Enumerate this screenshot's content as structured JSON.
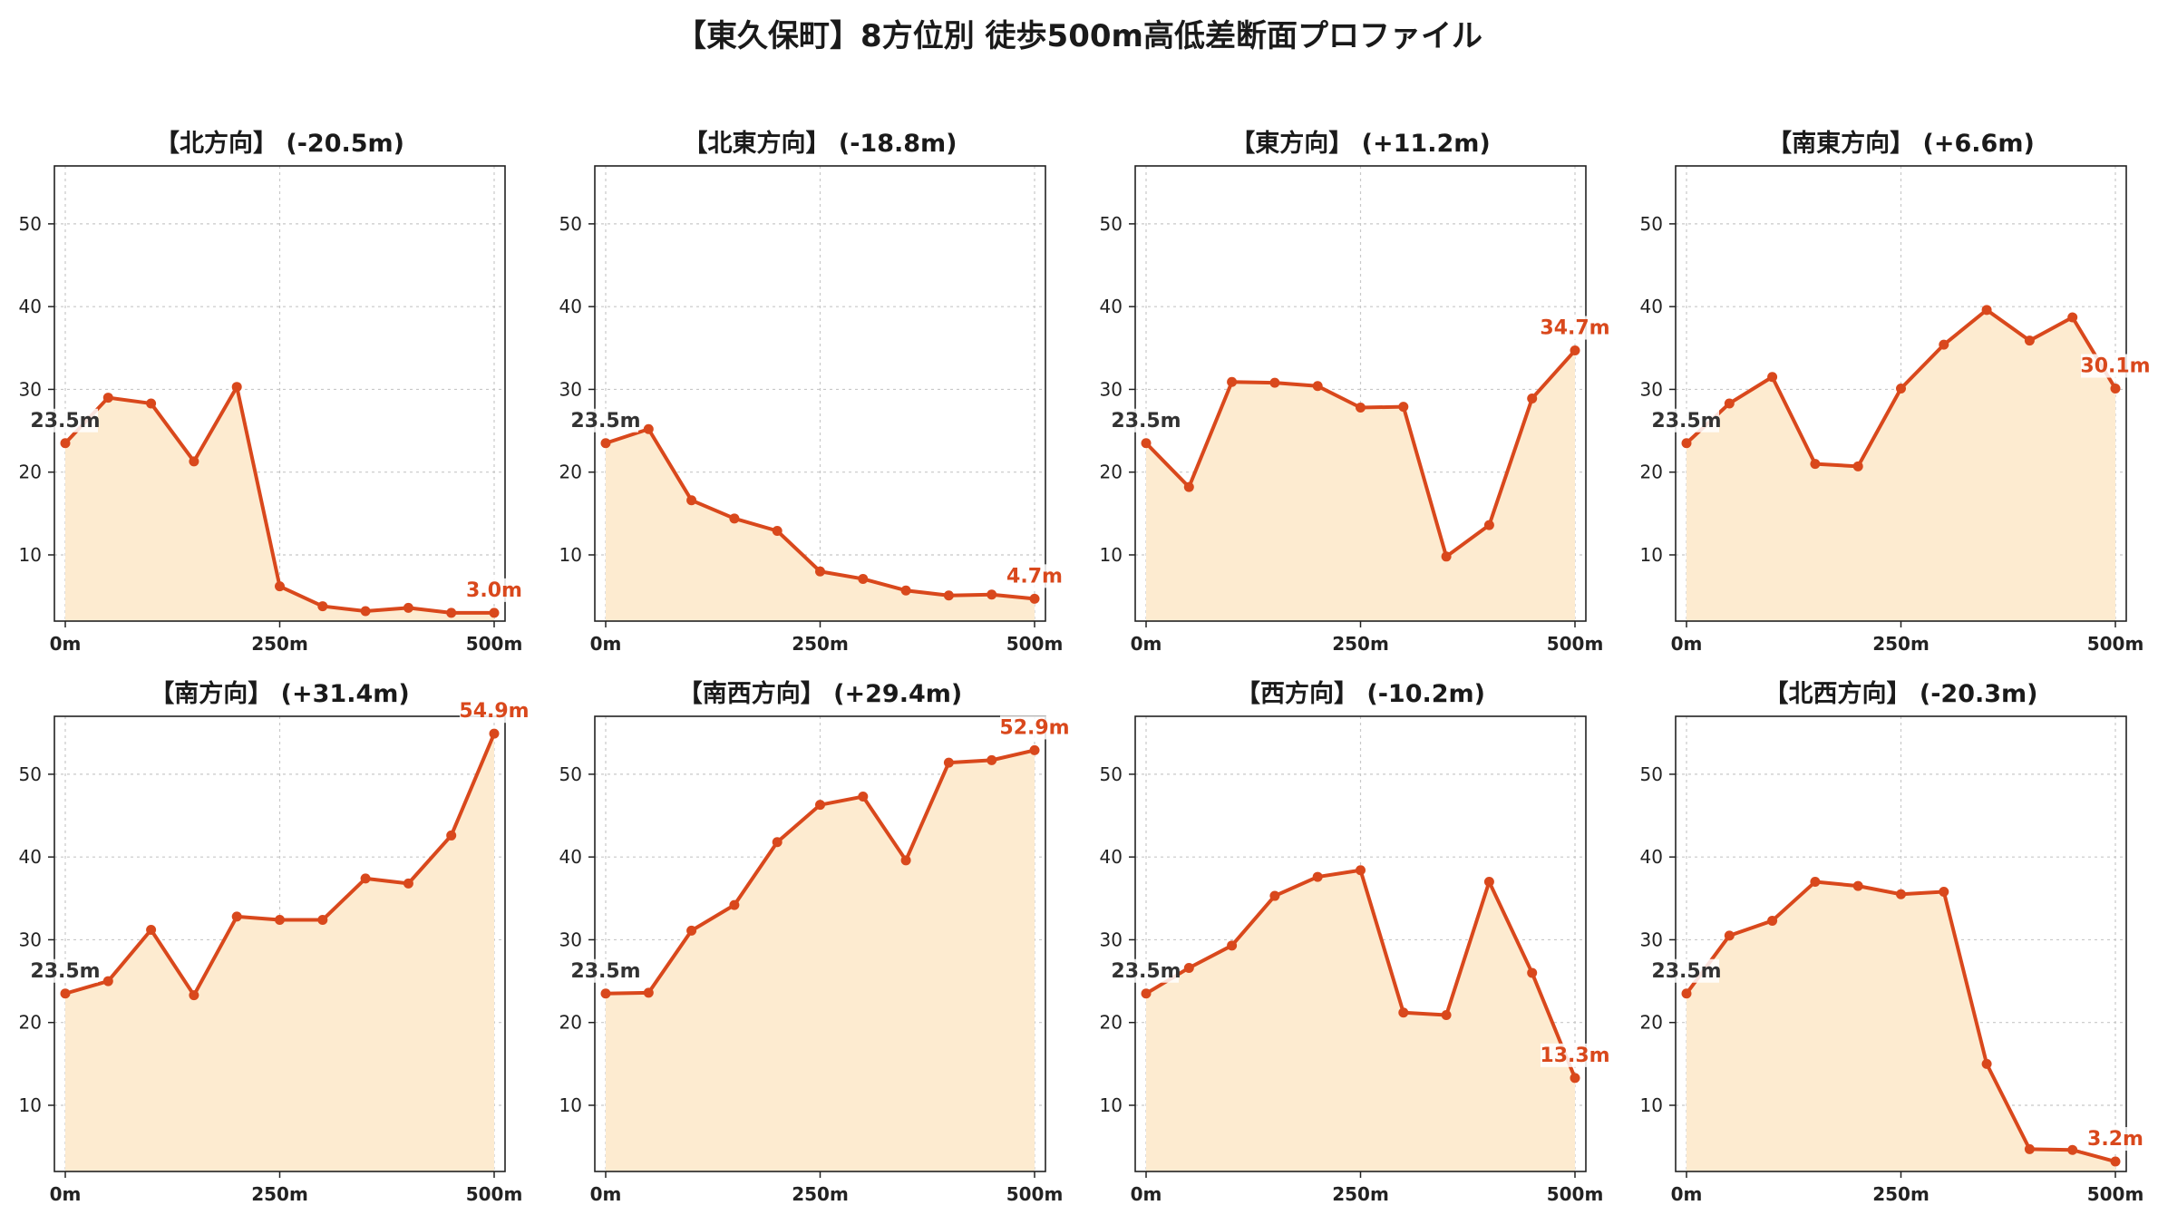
{
  "title": "【東久保町】8方位別 徒歩500m高低差断面プロファイル",
  "colors": {
    "line": "#d9481c",
    "fill": "#fdebd0",
    "grid": "#c8c8c8",
    "first_label": "#333333"
  },
  "chart_data": [
    {
      "type": "area",
      "title": "【北方向】 (-20.5m)",
      "xticklabels": [
        "0m",
        "250m",
        "500m"
      ],
      "yticks": [
        10,
        20,
        30,
        40,
        50
      ],
      "xlim": [
        0,
        500
      ],
      "ylim": [
        2,
        57
      ],
      "grid": true,
      "x": [
        0,
        50,
        100,
        150,
        200,
        250,
        300,
        350,
        400,
        450,
        500
      ],
      "values": [
        23.5,
        29.0,
        28.3,
        21.3,
        30.3,
        6.2,
        3.8,
        3.2,
        3.6,
        3.0,
        3.0
      ],
      "start_label": "23.5m",
      "end_label": "3.0m"
    },
    {
      "type": "area",
      "title": "【北東方向】 (-18.8m)",
      "xticklabels": [
        "0m",
        "250m",
        "500m"
      ],
      "yticks": [
        10,
        20,
        30,
        40,
        50
      ],
      "xlim": [
        0,
        500
      ],
      "ylim": [
        2,
        57
      ],
      "grid": true,
      "x": [
        0,
        50,
        100,
        150,
        200,
        250,
        300,
        350,
        400,
        450,
        500
      ],
      "values": [
        23.5,
        25.2,
        16.6,
        14.4,
        12.9,
        8.0,
        7.1,
        5.7,
        5.1,
        5.2,
        4.7
      ],
      "start_label": "23.5m",
      "end_label": "4.7m"
    },
    {
      "type": "area",
      "title": "【東方向】 (+11.2m)",
      "xticklabels": [
        "0m",
        "250m",
        "500m"
      ],
      "yticks": [
        10,
        20,
        30,
        40,
        50
      ],
      "xlim": [
        0,
        500
      ],
      "ylim": [
        2,
        57
      ],
      "grid": true,
      "x": [
        0,
        50,
        100,
        150,
        200,
        250,
        300,
        350,
        400,
        450,
        500
      ],
      "values": [
        23.5,
        18.2,
        30.9,
        30.8,
        30.4,
        27.8,
        27.9,
        9.8,
        13.6,
        28.9,
        34.7
      ],
      "start_label": "23.5m",
      "end_label": "34.7m"
    },
    {
      "type": "area",
      "title": "【南東方向】 (+6.6m)",
      "xticklabels": [
        "0m",
        "250m",
        "500m"
      ],
      "yticks": [
        10,
        20,
        30,
        40,
        50
      ],
      "xlim": [
        0,
        500
      ],
      "ylim": [
        2,
        57
      ],
      "grid": true,
      "x": [
        0,
        50,
        100,
        150,
        200,
        250,
        300,
        350,
        400,
        450,
        500
      ],
      "values": [
        23.5,
        28.3,
        31.5,
        21.0,
        20.7,
        30.1,
        35.4,
        39.6,
        35.9,
        38.7,
        30.1
      ],
      "start_label": "23.5m",
      "end_label": "30.1m"
    },
    {
      "type": "area",
      "title": "【南方向】 (+31.4m)",
      "xticklabels": [
        "0m",
        "250m",
        "500m"
      ],
      "yticks": [
        10,
        20,
        30,
        40,
        50
      ],
      "xlim": [
        0,
        500
      ],
      "ylim": [
        2,
        57
      ],
      "grid": true,
      "x": [
        0,
        50,
        100,
        150,
        200,
        250,
        300,
        350,
        400,
        450,
        500
      ],
      "values": [
        23.5,
        25.0,
        31.2,
        23.3,
        32.8,
        32.4,
        32.4,
        37.4,
        36.8,
        42.6,
        54.9
      ],
      "start_label": "23.5m",
      "end_label": "54.9m"
    },
    {
      "type": "area",
      "title": "【南西方向】 (+29.4m)",
      "xticklabels": [
        "0m",
        "250m",
        "500m"
      ],
      "yticks": [
        10,
        20,
        30,
        40,
        50
      ],
      "xlim": [
        0,
        500
      ],
      "ylim": [
        2,
        57
      ],
      "grid": true,
      "x": [
        0,
        50,
        100,
        150,
        200,
        250,
        300,
        350,
        400,
        450,
        500
      ],
      "values": [
        23.5,
        23.6,
        31.1,
        34.2,
        41.8,
        46.3,
        47.3,
        39.6,
        51.4,
        51.7,
        52.9
      ],
      "start_label": "23.5m",
      "end_label": "52.9m"
    },
    {
      "type": "area",
      "title": "【西方向】 (-10.2m)",
      "xticklabels": [
        "0m",
        "250m",
        "500m"
      ],
      "yticks": [
        10,
        20,
        30,
        40,
        50
      ],
      "xlim": [
        0,
        500
      ],
      "ylim": [
        2,
        57
      ],
      "grid": true,
      "x": [
        0,
        50,
        100,
        150,
        200,
        250,
        300,
        350,
        400,
        450,
        500
      ],
      "values": [
        23.5,
        26.6,
        29.3,
        35.3,
        37.6,
        38.4,
        21.2,
        20.9,
        37.0,
        26.0,
        13.3
      ],
      "start_label": "23.5m",
      "end_label": "13.3m"
    },
    {
      "type": "area",
      "title": "【北西方向】 (-20.3m)",
      "xticklabels": [
        "0m",
        "250m",
        "500m"
      ],
      "yticks": [
        10,
        20,
        30,
        40,
        50
      ],
      "xlim": [
        0,
        500
      ],
      "ylim": [
        2,
        57
      ],
      "grid": true,
      "x": [
        0,
        50,
        100,
        150,
        200,
        250,
        300,
        350,
        400,
        450,
        500
      ],
      "values": [
        23.5,
        30.5,
        32.3,
        37.0,
        36.5,
        35.5,
        35.8,
        15.0,
        4.7,
        4.6,
        3.2
      ],
      "start_label": "23.5m",
      "end_label": "3.2m"
    }
  ]
}
